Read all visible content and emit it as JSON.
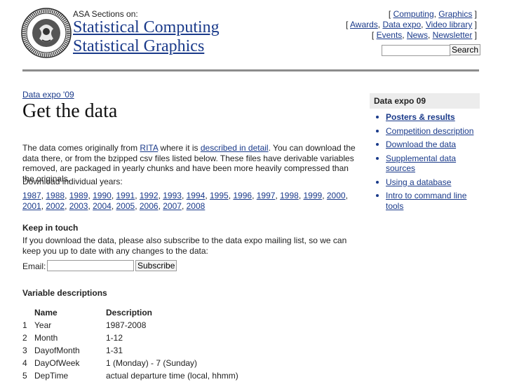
{
  "header": {
    "kicker": "ASA Sections on:",
    "title_line1": "Statistical Computing",
    "title_line2": "Statistical Graphics",
    "logo_name": "asa-seal-logo",
    "top_links": [
      [
        "Computing",
        "Graphics"
      ],
      [
        "Awards",
        "Data expo",
        "Video library"
      ],
      [
        "Events",
        "News",
        "Newsletter"
      ]
    ],
    "search_button": "Search",
    "search_value": ""
  },
  "main": {
    "breadcrumb": "Data expo '09",
    "title": "Get the data",
    "intro": {
      "p1": "The data comes originally from ",
      "link1": "RITA",
      "p2": " where it is ",
      "link2": "described in detail",
      "p3": ". You can download the data there, or from the bzipped csv files listed below. These files have derivable variables removed, are packaged in yearly chunks and have been more heavily compressed than the originals."
    },
    "years_label": "Download individual years:",
    "years": [
      "1987",
      "1988",
      "1989",
      "1990",
      "1991",
      "1992",
      "1993",
      "1994",
      "1995",
      "1996",
      "1997",
      "1998",
      "1999",
      "2000",
      "2001",
      "2002",
      "2003",
      "2004",
      "2005",
      "2006",
      "2007",
      "2008"
    ],
    "keep_in_touch": {
      "heading": "Keep in touch",
      "text": "If you download the data, please also subscribe to the data expo mailing list, so we can keep you up to date with any changes to the data:",
      "email_label": "Email:",
      "email_value": "",
      "subscribe_button": "Subscribe"
    },
    "variables": {
      "heading": "Variable descriptions",
      "columns": [
        "",
        "Name",
        "Description"
      ],
      "rows": [
        [
          "1",
          "Year",
          "1987-2008"
        ],
        [
          "2",
          "Month",
          "1-12"
        ],
        [
          "3",
          "DayofMonth",
          "1-31"
        ],
        [
          "4",
          "DayOfWeek",
          "1 (Monday) - 7 (Sunday)"
        ],
        [
          "5",
          "DepTime",
          "actual departure time (local, hhmm)"
        ]
      ]
    }
  },
  "sidebar": {
    "heading": "Data expo 09",
    "items": [
      {
        "label": "Posters & results",
        "active": true
      },
      {
        "label": "Competition description",
        "active": false
      },
      {
        "label": "Download the data",
        "active": false
      },
      {
        "label": "Supplemental data sources",
        "active": false
      },
      {
        "label": "Using a database",
        "active": false
      },
      {
        "label": "Intro to command line tools",
        "active": false
      }
    ]
  },
  "colors": {
    "link": "#1a3a8a",
    "rule": "#8c8c8c",
    "sidebar_head_bg": "#ececec"
  }
}
